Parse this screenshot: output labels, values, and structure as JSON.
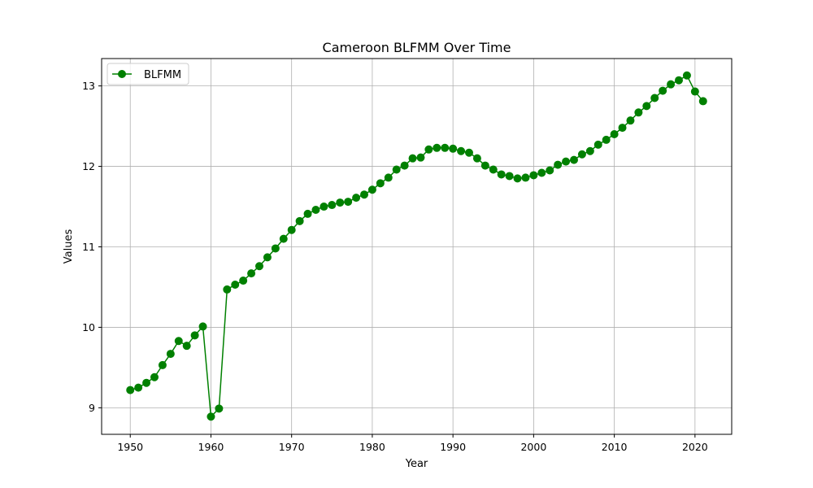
{
  "chart_data": {
    "type": "line",
    "title": "Cameroon BLFMM Over Time",
    "xlabel": "Year",
    "ylabel": "Values",
    "xlim": [
      1946.45,
      2024.55
    ],
    "ylim": [
      8.67,
      13.34
    ],
    "x_ticks": [
      1950,
      1960,
      1970,
      1980,
      1990,
      2000,
      2010,
      2020
    ],
    "y_ticks": [
      9,
      10,
      11,
      12,
      13
    ],
    "grid": true,
    "legend_position": "top-left",
    "series": [
      {
        "name": "BLFMM",
        "color": "#008000",
        "marker": "circle",
        "x": [
          1950,
          1951,
          1952,
          1953,
          1954,
          1955,
          1956,
          1957,
          1958,
          1959,
          1960,
          1961,
          1962,
          1963,
          1964,
          1965,
          1966,
          1967,
          1968,
          1969,
          1970,
          1971,
          1972,
          1973,
          1974,
          1975,
          1976,
          1977,
          1978,
          1979,
          1980,
          1981,
          1982,
          1983,
          1984,
          1985,
          1986,
          1987,
          1988,
          1989,
          1990,
          1991,
          1992,
          1993,
          1994,
          1995,
          1996,
          1997,
          1998,
          1999,
          2000,
          2001,
          2002,
          2003,
          2004,
          2005,
          2006,
          2007,
          2008,
          2009,
          2010,
          2011,
          2012,
          2013,
          2014,
          2015,
          2016,
          2017,
          2018,
          2019,
          2020,
          2021
        ],
        "y": [
          9.22,
          9.25,
          9.31,
          9.38,
          9.53,
          9.67,
          9.83,
          9.77,
          9.9,
          10.01,
          8.89,
          8.99,
          10.47,
          10.53,
          10.58,
          10.67,
          10.76,
          10.87,
          10.98,
          11.1,
          11.21,
          11.32,
          11.41,
          11.46,
          11.5,
          11.52,
          11.55,
          11.56,
          11.61,
          11.65,
          11.71,
          11.79,
          11.86,
          11.96,
          12.01,
          12.1,
          12.11,
          12.21,
          12.23,
          12.23,
          12.22,
          12.19,
          12.17,
          12.1,
          12.01,
          11.96,
          11.9,
          11.88,
          11.85,
          11.86,
          11.89,
          11.92,
          11.95,
          12.02,
          12.06,
          12.08,
          12.15,
          12.19,
          12.27,
          12.33,
          12.4,
          12.48,
          12.57,
          12.67,
          12.75,
          12.85,
          12.94,
          13.02,
          13.07,
          13.13,
          12.93,
          12.81
        ]
      }
    ]
  }
}
